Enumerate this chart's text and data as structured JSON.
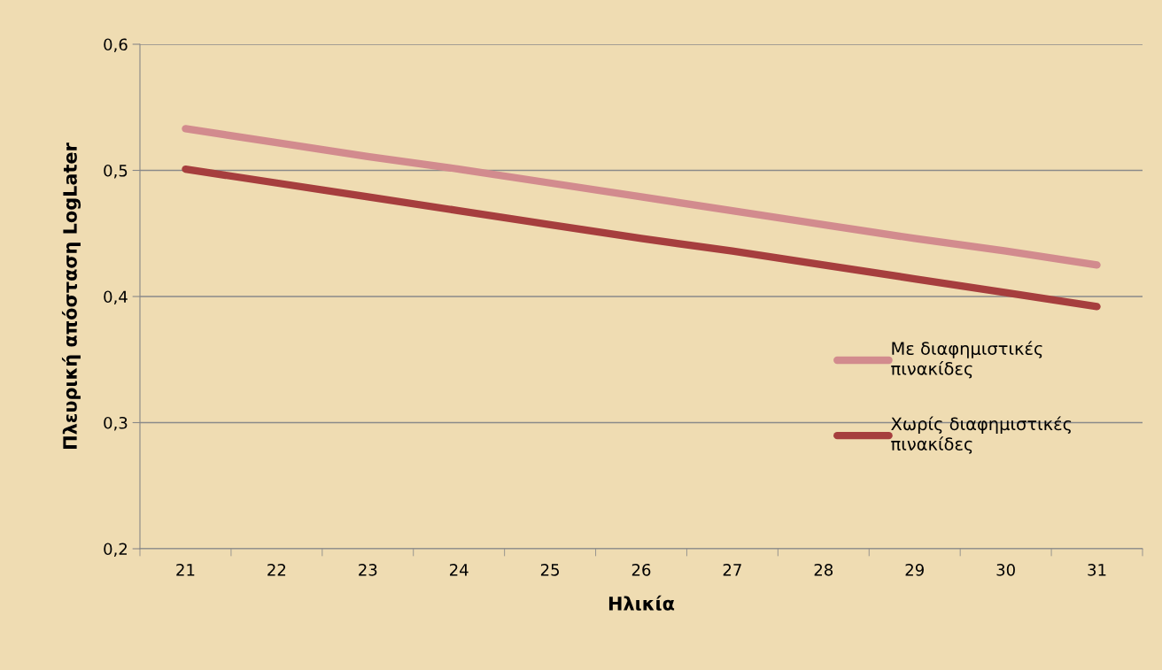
{
  "chart_data": {
    "type": "line",
    "xlabel": "Ηλικία",
    "ylabel": "Πλευρική απόσταση LogLater",
    "categories": [
      "21",
      "22",
      "23",
      "24",
      "25",
      "26",
      "27",
      "28",
      "29",
      "30",
      "31"
    ],
    "series": [
      {
        "name": "Με διαφημιστικές πινακίδες",
        "color": "#d28b8e",
        "values": [
          0.533,
          0.522,
          0.511,
          0.501,
          0.49,
          0.479,
          0.468,
          0.457,
          0.446,
          0.436,
          0.425
        ]
      },
      {
        "name": "Χωρίς διαφημιστικές πινακίδες",
        "color": "#a63e3e",
        "values": [
          0.501,
          0.49,
          0.479,
          0.468,
          0.457,
          0.446,
          0.436,
          0.425,
          0.414,
          0.403,
          0.392
        ]
      }
    ],
    "ylim": [
      0.2,
      0.6
    ],
    "yticks": [
      {
        "value": 0.2,
        "label": "0,2"
      },
      {
        "value": 0.3,
        "label": "0,3"
      },
      {
        "value": 0.4,
        "label": "0,4"
      },
      {
        "value": 0.5,
        "label": "0,5"
      },
      {
        "value": 0.6,
        "label": "0,6"
      }
    ],
    "grid": "y",
    "legend": "right",
    "marker": "none",
    "line_style": "solid"
  }
}
